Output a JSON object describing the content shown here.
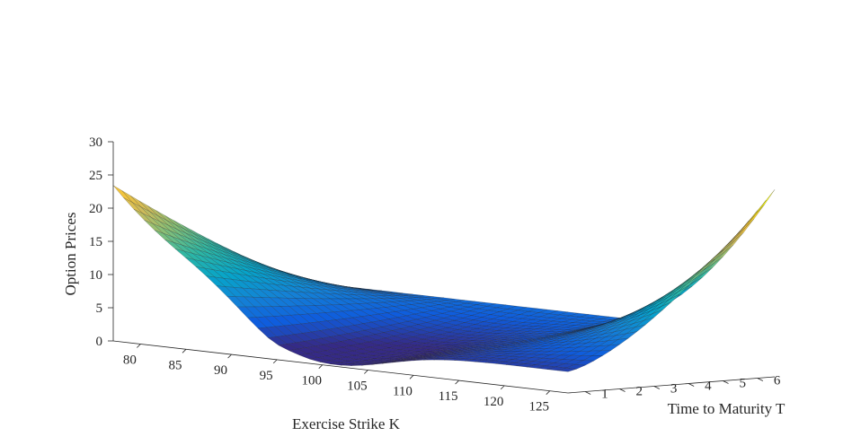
{
  "chart_data": {
    "type": "surface",
    "title": "",
    "xlabel": "Exercise Strike K",
    "ylabel": "Time to Maturity T",
    "zlabel": "Option Prices",
    "x_ticks": [
      "80",
      "85",
      "90",
      "95",
      "100",
      "105",
      "110",
      "115",
      "120",
      "125"
    ],
    "y_ticks": [
      "1",
      "2",
      "3",
      "4",
      "5",
      "6"
    ],
    "z_ticks": [
      "0",
      "5",
      "10",
      "15",
      "20",
      "25",
      "30"
    ],
    "xlim": [
      77,
      127
    ],
    "ylim": [
      0.5,
      6.5
    ],
    "zlim": [
      0,
      30
    ],
    "colormap": "parula",
    "colors": [
      "#352a87",
      "#0f5cdd",
      "#1481d6",
      "#06a4ca",
      "#2eb7a4",
      "#87bf77",
      "#d1bb59",
      "#fec832",
      "#f9fb0e"
    ],
    "description_points": [
      {
        "K": 77,
        "T": 0.5,
        "price": 24.5
      },
      {
        "K": 90,
        "T": 0.5,
        "price": 11
      },
      {
        "K": 100,
        "T": 0.5,
        "price": 0.3
      },
      {
        "K": 127,
        "T": 6.5,
        "price": 25.5
      },
      {
        "K": 127,
        "T": 0.5,
        "price": 4.5
      },
      {
        "K": 77,
        "T": 6.5,
        "price": 4.5
      }
    ]
  }
}
